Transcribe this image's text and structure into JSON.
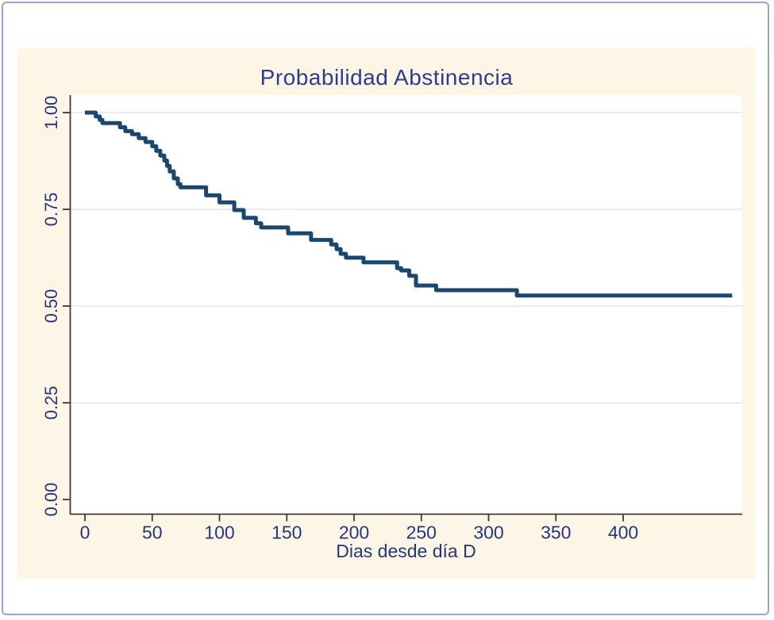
{
  "window": {
    "background_color": "#ffffff",
    "frame_border_color": "#9aa2cf"
  },
  "colors": {
    "panel_background": "#fdf6e7",
    "plot_background": "#ffffff",
    "grid_line": "#e4ecf4",
    "axis_line": "#3a3a36",
    "tick_label_text": "#24367c",
    "title_text": "#2a3e8f",
    "curve": "#1a476f"
  },
  "chart_data": {
    "type": "line",
    "subtype": "kaplan-meier-step",
    "title": "Probabilidad Abstinencia",
    "xlabel": "Dias desde día D",
    "ylabel": "",
    "legend": "none",
    "grid": "horizontal-only",
    "xlim": [
      0,
      490
    ],
    "ylim": [
      0.0,
      1.04
    ],
    "x_ticks": [
      0,
      50,
      100,
      150,
      200,
      250,
      300,
      350,
      400
    ],
    "y_ticks": [
      {
        "value": 0.0,
        "label": "0.00"
      },
      {
        "value": 0.25,
        "label": "0.25"
      },
      {
        "value": 0.5,
        "label": "0.50"
      },
      {
        "value": 0.75,
        "label": "0.75"
      },
      {
        "value": 1.0,
        "label": "1.00"
      }
    ],
    "gridline_values": [
      0.25,
      0.5,
      0.75,
      1.0
    ],
    "series": [
      {
        "name": "Probabilidad Abstinencia",
        "step": true,
        "color": "#1a476f",
        "line_width": 5,
        "x": [
          0,
          8,
          11,
          13,
          26,
          30,
          35,
          40,
          45,
          50,
          53,
          56,
          59,
          61,
          63,
          66,
          69,
          71,
          90,
          100,
          111,
          118,
          127,
          131,
          151,
          168,
          183,
          187,
          190,
          194,
          207,
          232,
          235,
          241,
          246,
          261,
          321
        ],
        "y": [
          1.0,
          0.99,
          0.981,
          0.973,
          0.962,
          0.952,
          0.944,
          0.934,
          0.924,
          0.913,
          0.901,
          0.889,
          0.876,
          0.862,
          0.848,
          0.83,
          0.815,
          0.807,
          0.786,
          0.768,
          0.748,
          0.728,
          0.714,
          0.703,
          0.688,
          0.671,
          0.659,
          0.647,
          0.635,
          0.625,
          0.613,
          0.598,
          0.592,
          0.578,
          0.553,
          0.541,
          0.527
        ],
        "x_end": 481
      }
    ]
  }
}
